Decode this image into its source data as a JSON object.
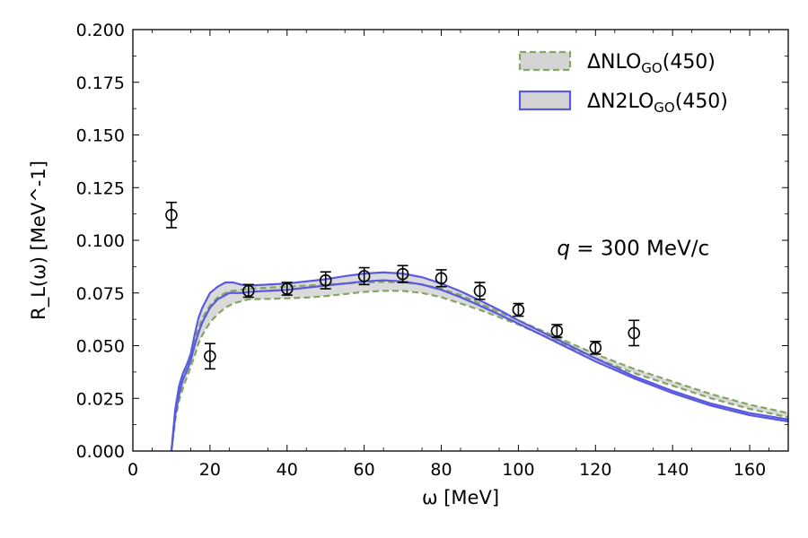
{
  "chart_data": {
    "type": "line",
    "xlabel": "ω  [MeV]",
    "ylabel": "R_L(ω)  [MeV^-1]",
    "xlim": [
      0,
      170
    ],
    "ylim": [
      0,
      0.2
    ],
    "xticks": [
      0,
      20,
      40,
      60,
      80,
      100,
      120,
      140,
      160
    ],
    "yticks": [
      0.0,
      0.025,
      0.05,
      0.075,
      0.1,
      0.125,
      0.15,
      0.175,
      0.2
    ],
    "ytick_labels": [
      "0.000",
      "0.025",
      "0.050",
      "0.075",
      "0.100",
      "0.125",
      "0.150",
      "0.175",
      "0.200"
    ],
    "annotation": {
      "prefix": "q",
      "text": " = 300 MeV/c",
      "x": 110,
      "y": 0.093
    },
    "legend_position": "top-right",
    "series": [
      {
        "name": "ΔNLO_GO(450)",
        "label_main": "ΔNLO",
        "label_sub": "GO",
        "label_tail": "(450)",
        "style": "dashed",
        "color": "#84a564",
        "fill": "#d4d4d4",
        "x": [
          10,
          11,
          12,
          13,
          14,
          15,
          16,
          17,
          18,
          20,
          22,
          24,
          25,
          26,
          28,
          30,
          35,
          40,
          45,
          50,
          55,
          60,
          65,
          70,
          75,
          80,
          85,
          90,
          95,
          100,
          110,
          120,
          130,
          140,
          150,
          160,
          170
        ],
        "upper": [
          0.0,
          0.018,
          0.028,
          0.034,
          0.039,
          0.044,
          0.052,
          0.058,
          0.063,
          0.069,
          0.073,
          0.075,
          0.076,
          0.076,
          0.0765,
          0.077,
          0.0775,
          0.078,
          0.0785,
          0.079,
          0.0795,
          0.08,
          0.0803,
          0.08,
          0.079,
          0.077,
          0.074,
          0.07,
          0.066,
          0.062,
          0.054,
          0.046,
          0.039,
          0.033,
          0.027,
          0.022,
          0.018
        ],
        "lower": [
          0.0,
          0.015,
          0.024,
          0.03,
          0.035,
          0.04,
          0.045,
          0.051,
          0.055,
          0.061,
          0.065,
          0.068,
          0.069,
          0.07,
          0.071,
          0.072,
          0.0722,
          0.0725,
          0.0728,
          0.0735,
          0.0745,
          0.0755,
          0.076,
          0.076,
          0.075,
          0.073,
          0.07,
          0.067,
          0.0635,
          0.06,
          0.052,
          0.044,
          0.037,
          0.031,
          0.025,
          0.02,
          0.016
        ]
      },
      {
        "name": "ΔN2LO_GO(450)",
        "label_main": "ΔN2LO",
        "label_sub": "GO",
        "label_tail": "(450)",
        "style": "solid",
        "color": "#5a5ae0",
        "fill": "#d4d4d4",
        "x": [
          10,
          11,
          12,
          13,
          14,
          15,
          16,
          17,
          18,
          20,
          22,
          24,
          25,
          26,
          28,
          30,
          35,
          40,
          45,
          50,
          55,
          60,
          65,
          70,
          75,
          80,
          85,
          90,
          95,
          100,
          110,
          120,
          130,
          140,
          150,
          160,
          170
        ],
        "upper": [
          0.0,
          0.02,
          0.031,
          0.037,
          0.041,
          0.046,
          0.055,
          0.063,
          0.068,
          0.075,
          0.078,
          0.08,
          0.08,
          0.08,
          0.079,
          0.0785,
          0.079,
          0.0795,
          0.0805,
          0.0815,
          0.083,
          0.0842,
          0.0848,
          0.0842,
          0.0825,
          0.0795,
          0.0758,
          0.0715,
          0.067,
          0.062,
          0.053,
          0.044,
          0.0355,
          0.0285,
          0.0225,
          0.018,
          0.015
        ],
        "lower": [
          0.0,
          0.017,
          0.027,
          0.034,
          0.038,
          0.043,
          0.05,
          0.056,
          0.061,
          0.068,
          0.072,
          0.074,
          0.075,
          0.075,
          0.075,
          0.0755,
          0.076,
          0.0765,
          0.0775,
          0.0785,
          0.0795,
          0.0805,
          0.081,
          0.0805,
          0.079,
          0.0765,
          0.073,
          0.069,
          0.0648,
          0.0605,
          0.0515,
          0.0425,
          0.0345,
          0.0275,
          0.0215,
          0.017,
          0.014
        ]
      }
    ],
    "data_points": {
      "name": "data",
      "x": [
        10,
        20,
        30,
        40,
        50,
        60,
        70,
        80,
        90,
        100,
        110,
        120,
        130
      ],
      "y": [
        0.112,
        0.045,
        0.076,
        0.077,
        0.081,
        0.083,
        0.084,
        0.082,
        0.076,
        0.067,
        0.057,
        0.049,
        0.056
      ],
      "err": [
        0.006,
        0.006,
        0.003,
        0.003,
        0.004,
        0.004,
        0.004,
        0.004,
        0.004,
        0.003,
        0.003,
        0.003,
        0.006
      ]
    }
  }
}
